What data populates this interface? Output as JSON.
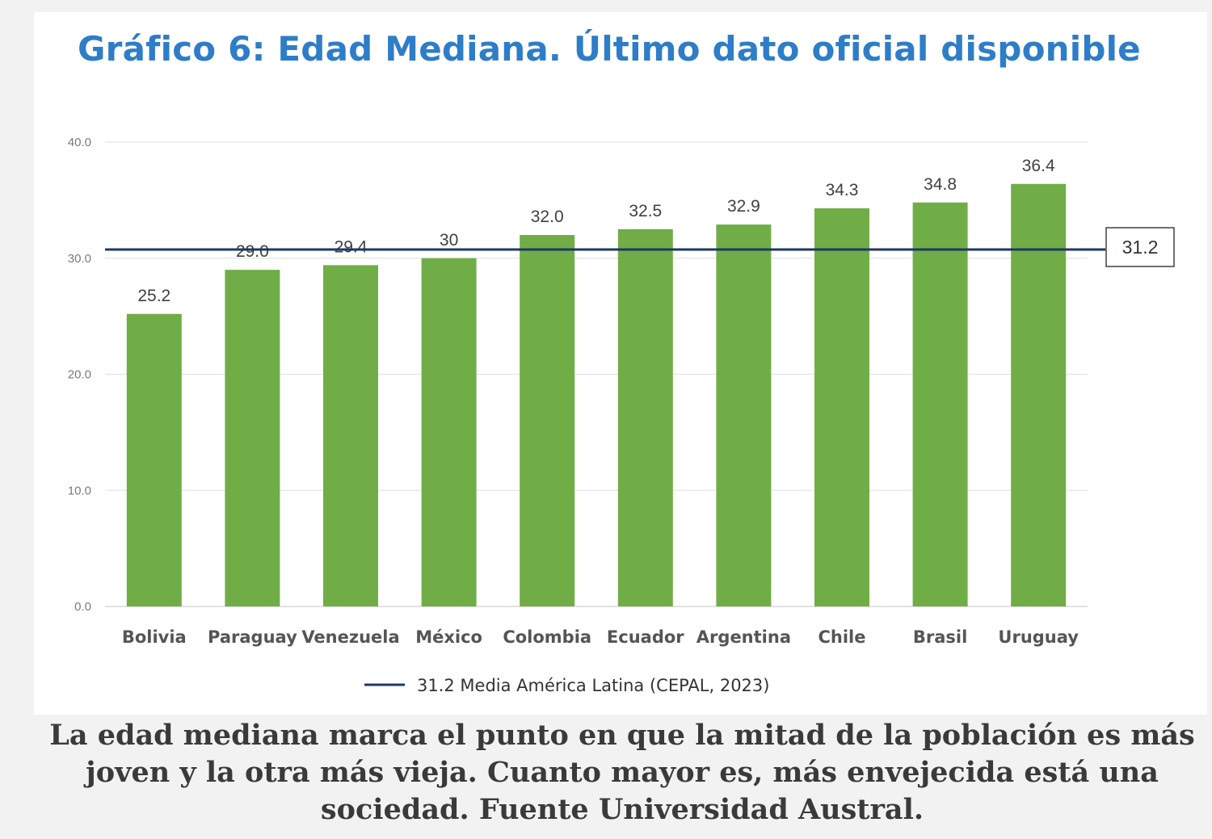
{
  "chart_data": {
    "type": "bar",
    "title": "Gráfico 6: Edad Mediana. Último dato oficial disponible",
    "categories": [
      "Bolivia",
      "Paraguay",
      "Venezuela",
      "México",
      "Colombia",
      "Ecuador",
      "Argentina",
      "Chile",
      "Brasil",
      "Uruguay"
    ],
    "values": [
      25.2,
      29.0,
      29.4,
      30,
      32.0,
      32.5,
      32.9,
      34.3,
      34.8,
      36.4
    ],
    "value_labels": [
      "25.2",
      "29.0",
      "29.4",
      "30",
      "32.0",
      "32.5",
      "32.9",
      "34.3",
      "34.8",
      "36.4"
    ],
    "ylim": [
      0,
      40
    ],
    "yticks": [
      0,
      10,
      20,
      30,
      40
    ],
    "ytick_labels": [
      "0.0",
      "10.0",
      "20.0",
      "30.0",
      "40.0"
    ],
    "grid": true,
    "bar_color": "#70ad47",
    "reference_line": {
      "value": 31.2,
      "label": "31.2",
      "legend": "31.2  Media América Latina (CEPAL, 2023)",
      "color": "#1f3864"
    },
    "legend_position": "bottom-center"
  },
  "caption": "La edad mediana marca el punto en que la mitad de la población es más joven y la otra más vieja. Cuanto mayor es, más envejecida está una sociedad. Fuente Universidad Austral."
}
